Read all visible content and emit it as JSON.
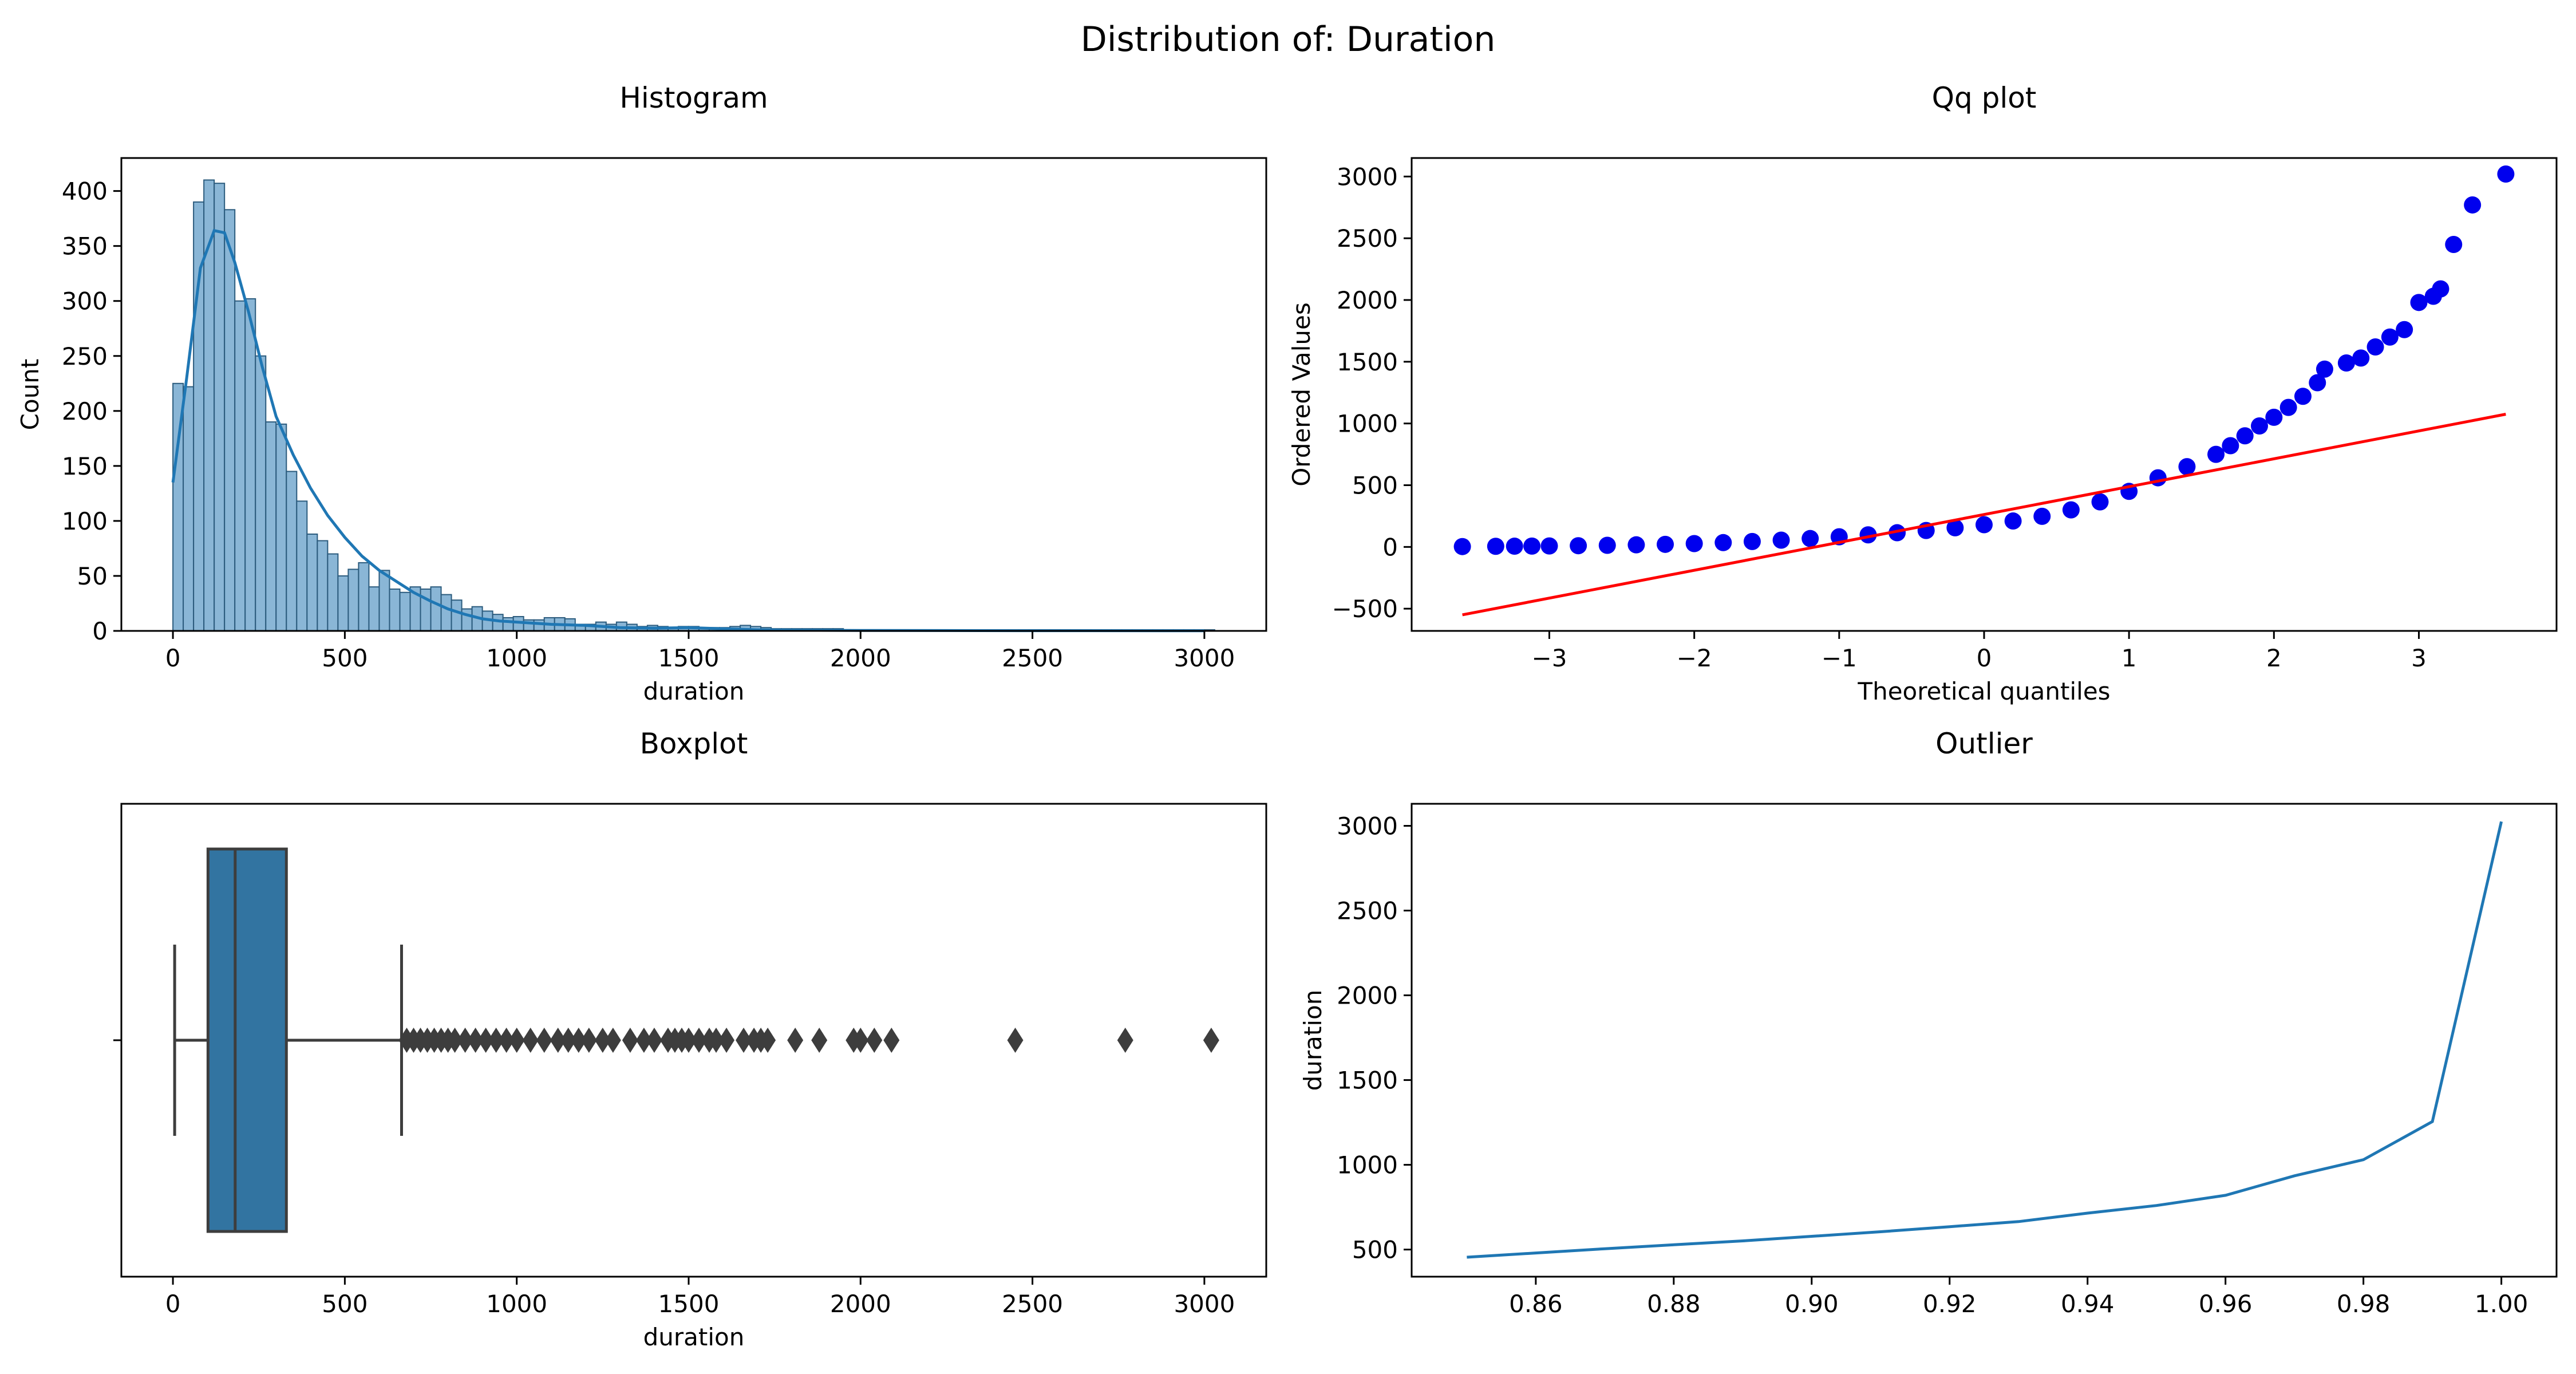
{
  "figure": {
    "title": "Distribution of: Duration"
  },
  "chart_data": [
    {
      "id": "histogram",
      "type": "bar",
      "title": "Histogram",
      "xlabel": "duration",
      "ylabel": "Count",
      "xlim": [
        -150,
        3180
      ],
      "ylim": [
        0,
        430
      ],
      "xticks": [
        0,
        500,
        1000,
        1500,
        2000,
        2500,
        3000
      ],
      "yticks": [
        0,
        50,
        100,
        150,
        200,
        250,
        300,
        350,
        400
      ],
      "bin_start": 0,
      "bin_width": 30,
      "counts": [
        225,
        222,
        390,
        410,
        407,
        383,
        300,
        302,
        250,
        190,
        188,
        145,
        118,
        88,
        82,
        70,
        50,
        56,
        62,
        40,
        55,
        38,
        35,
        40,
        38,
        40,
        33,
        28,
        20,
        22,
        18,
        15,
        12,
        13,
        10,
        10,
        12,
        12,
        11,
        6,
        6,
        8,
        6,
        8,
        6,
        4,
        5,
        4,
        3,
        4,
        4,
        3,
        3,
        3,
        4,
        5,
        4,
        3,
        2,
        2,
        2,
        2,
        2,
        2,
        2,
        1,
        1,
        1,
        1,
        1,
        1,
        1,
        1,
        1,
        1,
        1,
        1,
        1,
        1,
        1,
        1,
        1,
        1,
        1,
        1,
        1,
        1,
        1,
        1,
        1,
        1,
        1,
        1,
        1,
        1,
        1,
        1,
        1,
        1,
        1,
        1
      ],
      "kde": [
        [
          0,
          135
        ],
        [
          40,
          230
        ],
        [
          80,
          330
        ],
        [
          120,
          364
        ],
        [
          150,
          362
        ],
        [
          180,
          335
        ],
        [
          220,
          290
        ],
        [
          260,
          240
        ],
        [
          300,
          195
        ],
        [
          350,
          160
        ],
        [
          400,
          130
        ],
        [
          450,
          105
        ],
        [
          500,
          85
        ],
        [
          550,
          68
        ],
        [
          600,
          55
        ],
        [
          650,
          45
        ],
        [
          700,
          35
        ],
        [
          750,
          27
        ],
        [
          800,
          20
        ],
        [
          850,
          15
        ],
        [
          900,
          11
        ],
        [
          950,
          9
        ],
        [
          1000,
          8
        ],
        [
          1100,
          6
        ],
        [
          1200,
          5
        ],
        [
          1300,
          3
        ],
        [
          1400,
          2.5
        ],
        [
          1500,
          3
        ],
        [
          1600,
          2
        ],
        [
          1700,
          1
        ],
        [
          1800,
          0.6
        ],
        [
          2000,
          0.4
        ],
        [
          2500,
          0.2
        ],
        [
          3000,
          0.1
        ]
      ],
      "colors": {
        "bar_fill": "#8ab6d6",
        "bar_edge": "#2b5b7d",
        "kde": "#1f77b4"
      }
    },
    {
      "id": "qq",
      "type": "scatter",
      "title": "Qq plot",
      "xlabel": "Theoretical quantiles",
      "ylabel": "Ordered Values",
      "xlim": [
        -3.95,
        3.95
      ],
      "ylim": [
        -680,
        3150
      ],
      "xticks": [
        -3,
        -2,
        -1,
        0,
        1,
        2,
        3
      ],
      "yticks": [
        -500,
        0,
        500,
        1000,
        1500,
        2000,
        2500,
        3000
      ],
      "points": [
        [
          -3.6,
          3
        ],
        [
          -3.37,
          5
        ],
        [
          -3.24,
          6
        ],
        [
          -3.12,
          7
        ],
        [
          -3.0,
          8
        ],
        [
          -2.8,
          10
        ],
        [
          -2.6,
          13
        ],
        [
          -2.4,
          17
        ],
        [
          -2.2,
          21
        ],
        [
          -2.0,
          27
        ],
        [
          -1.8,
          35
        ],
        [
          -1.6,
          44
        ],
        [
          -1.4,
          55
        ],
        [
          -1.2,
          68
        ],
        [
          -1.0,
          82
        ],
        [
          -0.8,
          98
        ],
        [
          -0.6,
          115
        ],
        [
          -0.4,
          133
        ],
        [
          -0.2,
          155
        ],
        [
          0.0,
          180
        ],
        [
          0.2,
          210
        ],
        [
          0.4,
          248
        ],
        [
          0.6,
          300
        ],
        [
          0.8,
          365
        ],
        [
          1.0,
          450
        ],
        [
          1.2,
          560
        ],
        [
          1.4,
          650
        ],
        [
          1.6,
          750
        ],
        [
          1.7,
          820
        ],
        [
          1.8,
          900
        ],
        [
          1.9,
          980
        ],
        [
          2.0,
          1050
        ],
        [
          2.1,
          1130
        ],
        [
          2.2,
          1220
        ],
        [
          2.3,
          1330
        ],
        [
          2.35,
          1440
        ],
        [
          2.5,
          1490
        ],
        [
          2.6,
          1530
        ],
        [
          2.7,
          1620
        ],
        [
          2.8,
          1700
        ],
        [
          2.9,
          1760
        ],
        [
          3.0,
          1980
        ],
        [
          3.1,
          2030
        ],
        [
          3.15,
          2090
        ],
        [
          3.24,
          2450
        ],
        [
          3.37,
          2770
        ],
        [
          3.6,
          3020
        ]
      ],
      "fit_line": [
        [
          -3.6,
          -550
        ],
        [
          3.6,
          1075
        ]
      ],
      "colors": {
        "points": "#0000ee",
        "fit": "#ff0000"
      }
    },
    {
      "id": "boxplot",
      "type": "box",
      "title": "Boxplot",
      "xlabel": "duration",
      "xlim": [
        -150,
        3180
      ],
      "xticks": [
        0,
        500,
        1000,
        1500,
        2000,
        2500,
        3000
      ],
      "whisker_low": 5,
      "q1": 102,
      "median": 181,
      "q3": 330,
      "whisker_high": 665,
      "outliers": [
        680,
        700,
        720,
        740,
        760,
        780,
        800,
        820,
        850,
        880,
        910,
        940,
        970,
        1000,
        1040,
        1080,
        1120,
        1150,
        1180,
        1210,
        1250,
        1280,
        1330,
        1370,
        1400,
        1440,
        1460,
        1480,
        1500,
        1530,
        1560,
        1580,
        1610,
        1660,
        1690,
        1710,
        1730,
        1810,
        1880,
        1980,
        2000,
        2040,
        2090,
        2450,
        2770,
        3020
      ],
      "colors": {
        "box": "#3274a1",
        "lines": "#3d3d3d"
      }
    },
    {
      "id": "outlier",
      "type": "line",
      "title": "Outlier",
      "xlabel": "",
      "ylabel": "duration",
      "xlim": [
        0.842,
        1.008
      ],
      "ylim": [
        340,
        3130
      ],
      "xticks": [
        "0.86",
        "0.88",
        "0.90",
        "0.92",
        "0.94",
        "0.96",
        "0.98",
        "1.00"
      ],
      "yticks": [
        500,
        1000,
        1500,
        2000,
        2500,
        3000
      ],
      "x": [
        0.85,
        0.86,
        0.87,
        0.88,
        0.89,
        0.9,
        0.91,
        0.92,
        0.93,
        0.94,
        0.95,
        0.96,
        0.97,
        0.98,
        0.99,
        1.0
      ],
      "y": [
        455,
        480,
        505,
        528,
        551,
        578,
        605,
        635,
        665,
        715,
        760,
        820,
        935,
        1030,
        1255,
        3025
      ],
      "colors": {
        "line": "#1f77b4"
      }
    }
  ]
}
